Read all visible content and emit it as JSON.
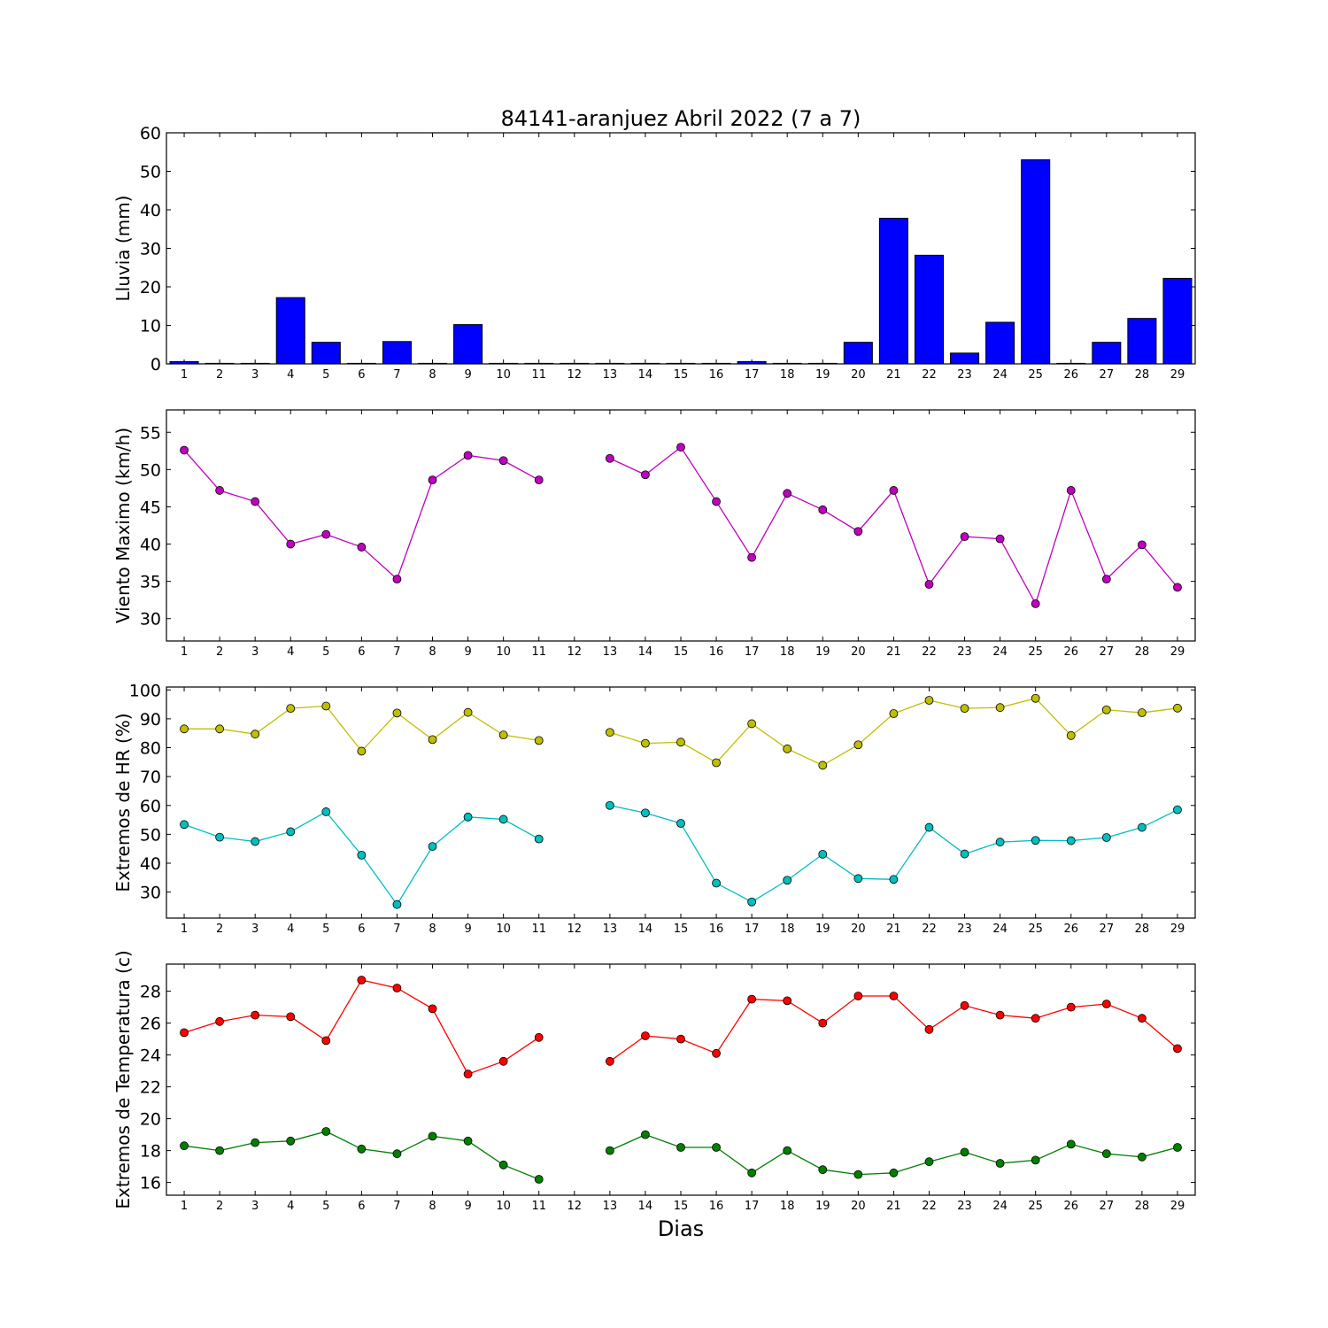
{
  "title": "84141-aranjuez Abril 2022  (7 a 7)",
  "xlabel": "Dias",
  "chart_data": [
    {
      "id": "lluvia",
      "type": "bar",
      "ylabel": "Lluvia (mm)",
      "ylim": [
        0,
        60
      ],
      "yticks": [
        0,
        10,
        20,
        30,
        40,
        50,
        60
      ],
      "x": [
        1,
        2,
        3,
        4,
        5,
        6,
        7,
        8,
        9,
        10,
        11,
        12,
        13,
        14,
        15,
        16,
        17,
        18,
        19,
        20,
        21,
        22,
        23,
        24,
        25,
        26,
        27,
        28,
        29
      ],
      "xlim": [
        0.5,
        29.5
      ],
      "series": [
        {
          "color": "#0000ff",
          "values": [
            0.6,
            0,
            0,
            17.2,
            5.6,
            0,
            5.8,
            0,
            10.2,
            0,
            0,
            0,
            0,
            0,
            0,
            0,
            0.6,
            0,
            0,
            5.6,
            37.8,
            28.2,
            2.8,
            10.8,
            53,
            0,
            5.6,
            11.8,
            22.2
          ]
        }
      ]
    },
    {
      "id": "viento",
      "type": "line",
      "ylabel": "Viento Maximo (km/h)",
      "ylim": [
        27,
        58
      ],
      "yticks": [
        30,
        35,
        40,
        45,
        50,
        55
      ],
      "x": [
        1,
        2,
        3,
        4,
        5,
        6,
        7,
        8,
        9,
        10,
        11,
        12,
        13,
        14,
        15,
        16,
        17,
        18,
        19,
        20,
        21,
        22,
        23,
        24,
        25,
        26,
        27,
        28,
        29
      ],
      "xlim": [
        0.5,
        29.5
      ],
      "series": [
        {
          "color": "#bf00bf",
          "values": [
            52.6,
            47.2,
            45.7,
            40,
            41.3,
            39.6,
            35.3,
            48.6,
            51.9,
            51.2,
            48.6,
            null,
            51.5,
            49.3,
            53,
            45.7,
            38.2,
            46.8,
            44.6,
            41.7,
            47.2,
            34.6,
            41,
            40.7,
            32,
            47.2,
            35.3,
            39.9,
            34.2
          ]
        }
      ]
    },
    {
      "id": "hr",
      "type": "line",
      "ylabel": "Extremos de HR (%)",
      "ylim": [
        21,
        101
      ],
      "yticks": [
        30,
        40,
        50,
        60,
        70,
        80,
        90,
        100
      ],
      "x": [
        1,
        2,
        3,
        4,
        5,
        6,
        7,
        8,
        9,
        10,
        11,
        12,
        13,
        14,
        15,
        16,
        17,
        18,
        19,
        20,
        21,
        22,
        23,
        24,
        25,
        26,
        27,
        28,
        29
      ],
      "xlim": [
        0.5,
        29.5
      ],
      "series": [
        {
          "color": "#bfbf00",
          "values": [
            86.5,
            86.5,
            84.7,
            93.6,
            94.4,
            78.8,
            92,
            82.8,
            92.2,
            84.4,
            82.5,
            null,
            85.3,
            81.5,
            81.9,
            74.8,
            88.3,
            79.6,
            73.9,
            81,
            91.8,
            96.4,
            93.6,
            93.9,
            97.1,
            84.2,
            93.1,
            92.1,
            93.7
          ]
        },
        {
          "color": "#00bfbf",
          "values": [
            53.4,
            49,
            47.5,
            50.9,
            57.8,
            42.8,
            25.7,
            45.8,
            56,
            55.2,
            48.4,
            null,
            60,
            57.4,
            53.8,
            33.1,
            26.6,
            34.1,
            43.1,
            34.7,
            34.4,
            52.4,
            43.2,
            47.3,
            47.9,
            47.8,
            48.9,
            52.4,
            58.5
          ]
        }
      ]
    },
    {
      "id": "temperatura",
      "type": "line",
      "ylabel": "Extremos de Temperatura (c)",
      "ylim": [
        15.2,
        29.7
      ],
      "yticks": [
        16,
        18,
        20,
        22,
        24,
        26,
        28
      ],
      "x": [
        1,
        2,
        3,
        4,
        5,
        6,
        7,
        8,
        9,
        10,
        11,
        12,
        13,
        14,
        15,
        16,
        17,
        18,
        19,
        20,
        21,
        22,
        23,
        24,
        25,
        26,
        27,
        28,
        29
      ],
      "xlim": [
        0.5,
        29.5
      ],
      "series": [
        {
          "color": "#ff0000",
          "values": [
            25.4,
            26.1,
            26.5,
            26.4,
            24.9,
            28.7,
            28.2,
            26.9,
            22.8,
            23.6,
            25.1,
            null,
            23.6,
            25.2,
            25,
            24.1,
            27.5,
            27.4,
            26,
            27.7,
            27.7,
            25.6,
            27.1,
            26.5,
            26.3,
            27,
            27.2,
            26.3,
            24.4
          ]
        },
        {
          "color": "#007f00",
          "values": [
            18.3,
            18,
            18.5,
            18.6,
            19.2,
            18.1,
            17.8,
            18.9,
            18.6,
            17.1,
            16.2,
            null,
            18,
            19,
            18.2,
            18.2,
            16.6,
            18,
            16.8,
            16.5,
            16.6,
            17.3,
            17.9,
            17.2,
            17.4,
            18.4,
            17.8,
            17.6,
            18.2
          ]
        }
      ]
    }
  ]
}
